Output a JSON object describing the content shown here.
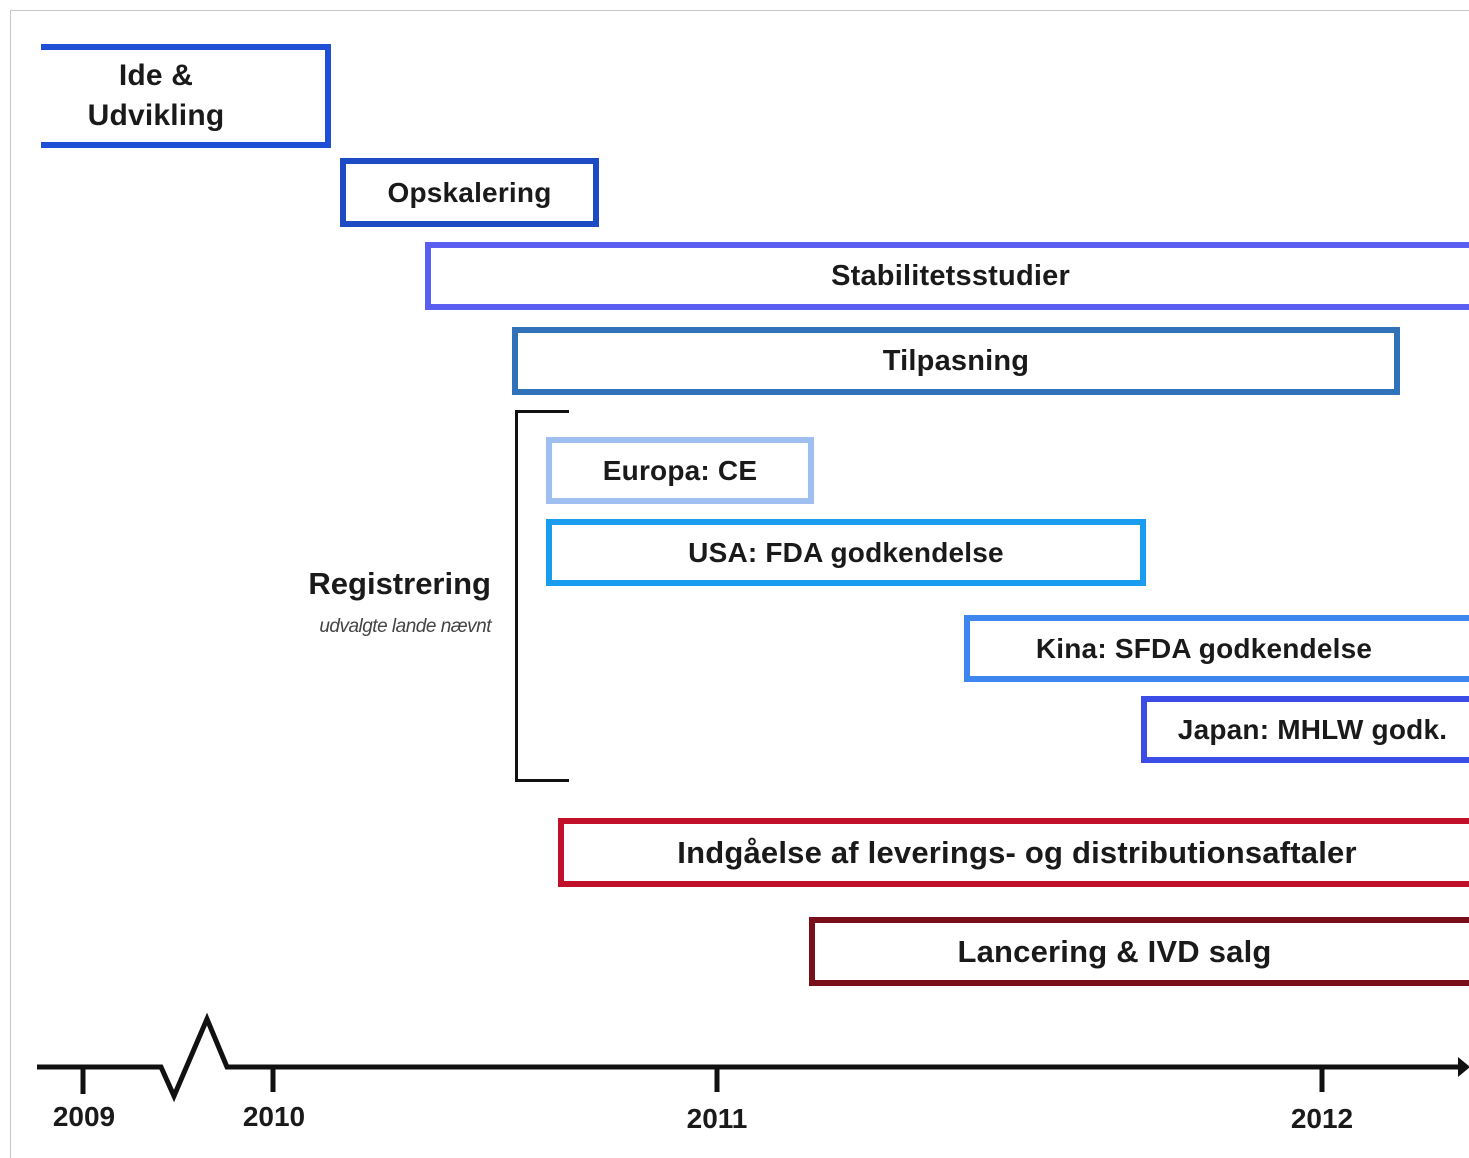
{
  "phases": {
    "ide": "Ide &\nUdvikling",
    "opskalering": "Opskalering",
    "stabilitet": "Stabilitetsstudier",
    "tilpasning": "Tilpasning",
    "europa": "Europa: CE",
    "usa": "USA: FDA godkendelse",
    "kina": "Kina: SFDA godkendelse",
    "japan": "Japan: MHLW godk.",
    "indgaaelse": "Indgåelse af leverings- og distributionsaftaler",
    "lancering": "Lancering & IVD salg"
  },
  "registrering": {
    "title": "Registrering",
    "subtitle": "udvalgte lande nævnt"
  },
  "axis": {
    "years": [
      "2009",
      "2010",
      "2011",
      "2012"
    ]
  }
}
